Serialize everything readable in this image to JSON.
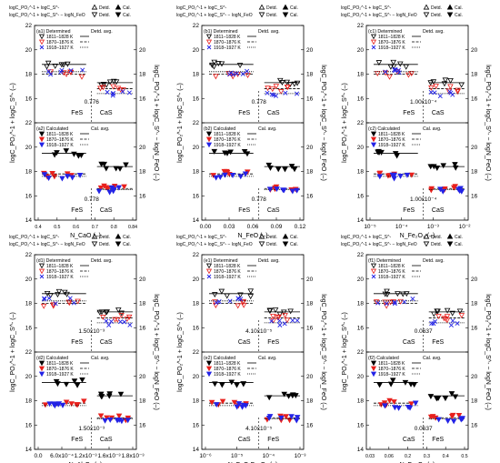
{
  "legend_top": {
    "line1": "logC_PO₂^-1 + logC_S^-",
    "line2": "logC_PO₂^-1 + logC_S^- − logN_FeO",
    "detd": "Detd.",
    "cal": "Cal."
  },
  "series_names": [
    "1811–1828 K",
    "1870–1876 K",
    "1918–1927 K"
  ],
  "colors": {
    "s1811": "#000000",
    "s1870": "#e8201c",
    "s1918": "#2323e6",
    "avg": "#000000"
  },
  "avg_label": "Detd. avg.",
  "avg_label_cal": "Cal. avg.",
  "ylabel_left": "logC_PO₂^-1 + logC_S^- (–)",
  "ylabel_right": "logC_PO₂^-1 + logC_S^- − logN_FeO (–)",
  "yticks": [
    "14",
    "16",
    "18",
    "20",
    "22"
  ],
  "chart_data": [
    {
      "id": "a",
      "type": "scatter",
      "xlabel": "N_CaO (–)",
      "xticks": [
        "0.4",
        "0.5",
        "0.6",
        "0.7",
        "0.8",
        "0.84"
      ],
      "sub1": {
        "tag": "(a1) Determined",
        "threshold": "0.776",
        "phases": [
          "FeS",
          "CaS"
        ]
      },
      "sub2": {
        "tag": "(a2) Calculated",
        "threshold": "0.778",
        "phases": [
          "FeS",
          "CaS"
        ]
      },
      "ylim": [
        14,
        22
      ]
    },
    {
      "id": "b",
      "type": "scatter",
      "xlabel": "N_FeO (–)",
      "xticks": [
        "0.00",
        "0.03",
        "0.06",
        "0.09",
        "0.12"
      ],
      "sub1": {
        "tag": "(b1) Determined",
        "threshold": "0.778",
        "phases": [
          "FeS",
          "CaS"
        ]
      },
      "sub2": {
        "tag": "(b2) Calculated",
        "threshold": "0.778",
        "phases": [
          "FeS",
          "CaS"
        ]
      },
      "ylim": [
        14,
        22
      ]
    },
    {
      "id": "c",
      "type": "scatter",
      "xlabel": "N_Fe₂O₃ (–)",
      "xticks": [
        "10⁻⁵",
        "10⁻⁴",
        "10⁻³",
        "10⁻²"
      ],
      "sub1": {
        "tag": "(c1) Determined",
        "threshold": "1.00x10⁻⁴",
        "phases": [
          "FeS",
          "CaS"
        ]
      },
      "sub2": {
        "tag": "(c2) Calculated",
        "threshold": "1.00x10⁻⁴",
        "phases": [
          "FeS",
          "CaS"
        ]
      },
      "ylim": [
        14,
        22
      ]
    },
    {
      "id": "d",
      "type": "scatter",
      "xlabel": "N_Al₂O₃ (–)",
      "xticks": [
        "0.0",
        "6.0x10⁻⁴",
        "1.2x10⁻³",
        "1.6x10⁻³",
        "1.8x10⁻³"
      ],
      "sub1": {
        "tag": "(d1) Determined",
        "threshold": "1.50x10⁻³",
        "phases": [
          "FeS",
          "CaS"
        ]
      },
      "sub2": {
        "tag": "(d2) Calculated",
        "threshold": "1.50x10⁻³",
        "phases": [
          "FeS",
          "CaS"
        ]
      },
      "ylim": [
        14,
        22
      ]
    },
    {
      "id": "e",
      "type": "scatter",
      "xlabel": "N_FeO·Fe₂O₃ (–)",
      "xticks": [
        "10⁻⁶",
        "10⁻⁵",
        "10⁻⁴",
        "10⁻³"
      ],
      "sub1": {
        "tag": "(e1) Determined",
        "threshold": "4.10x10⁻⁵",
        "phases": [
          "CaS",
          "FeS"
        ]
      },
      "sub2": {
        "tag": "(e2) Calculated",
        "threshold": "4.10x10⁻⁵",
        "phases": [
          "CaS",
          "FeS"
        ]
      },
      "ylim": [
        14,
        22
      ]
    },
    {
      "id": "f",
      "type": "scatter",
      "xlabel": "N_Fe₃O₄ (–)",
      "xticks": [
        "0.03",
        "0.06",
        "0.2",
        "0.3",
        "0.4",
        "0.5"
      ],
      "sub1": {
        "tag": "(f1) Determined",
        "threshold": "0.0637",
        "phases": [
          "CaS",
          "FeS"
        ]
      },
      "sub2": {
        "tag": "(f2) Calculated",
        "threshold": "0.0637",
        "phases": [
          "CaS",
          "FeS"
        ]
      },
      "ylim": [
        14,
        22
      ]
    }
  ]
}
